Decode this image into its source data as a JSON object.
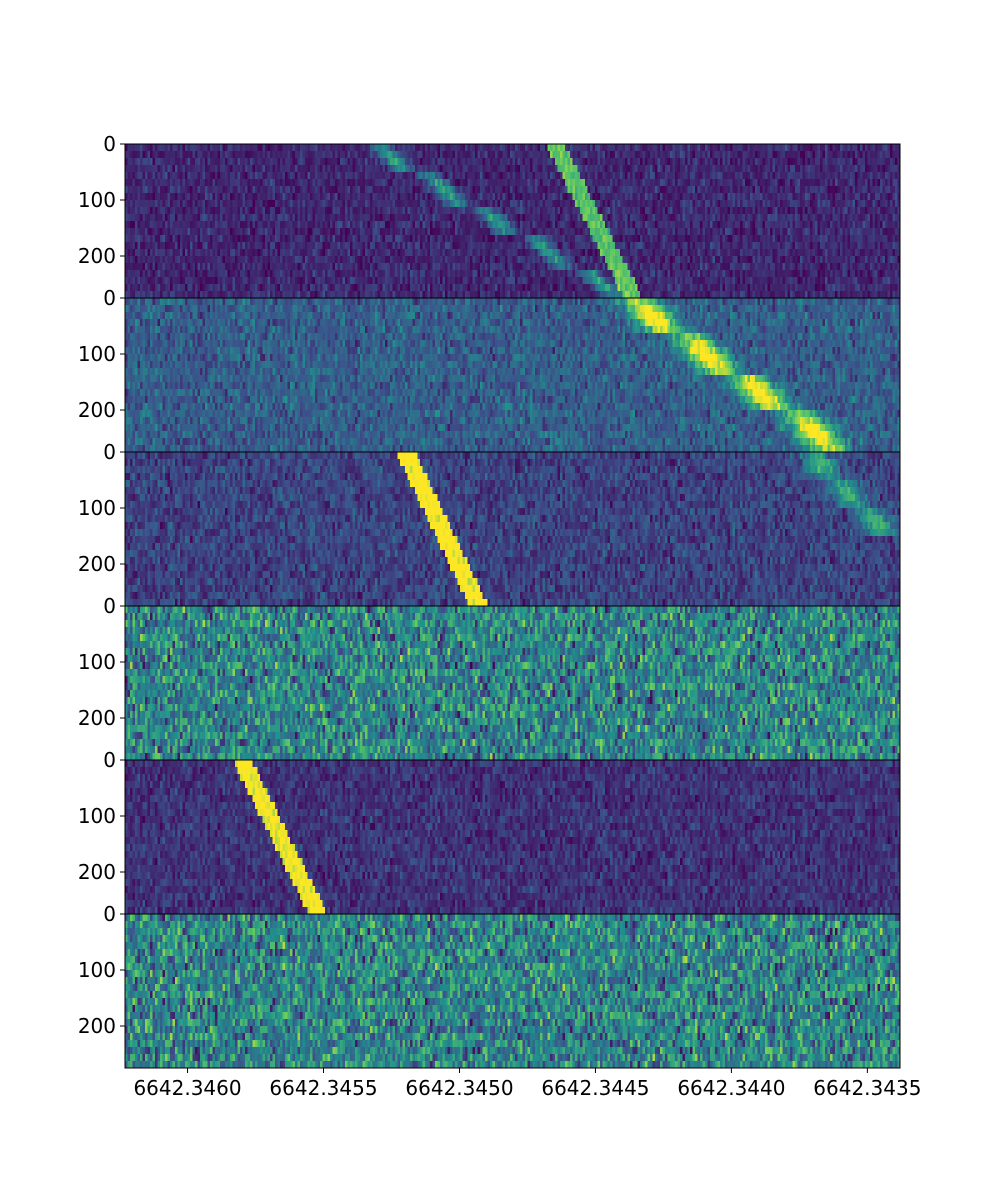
{
  "chart_data": {
    "type": "heatmap",
    "title": "",
    "xlabel": "",
    "ylabel": "",
    "x_axis": {
      "xlim": [
        6642.34623,
        6642.34338
      ],
      "inverted": true,
      "ticks": [
        6642.346,
        6642.3455,
        6642.345,
        6642.3445,
        6642.344,
        6642.3435
      ],
      "tick_labels": [
        "6642.3460",
        "6642.3455",
        "6642.3450",
        "6642.3445",
        "6642.3440",
        "6642.3435"
      ]
    },
    "colormap": "viridis",
    "panels": [
      {
        "ylim": [
          0,
          275
        ],
        "y_ticks": [
          0,
          100,
          200
        ],
        "y_tick_labels": [
          "0",
          "100",
          "200"
        ],
        "background_level": 0.12,
        "noise_level": 0.06,
        "tracks": [
          {
            "x_start": 6642.34436,
            "x_end": 6642.34465,
            "intensity": 0.62,
            "width": 3.5e-05
          },
          {
            "x_start": 6642.34435,
            "x_end": 6642.3453,
            "intensity": 0.45,
            "width": 4e-05,
            "style": "fuzzy-slow",
            "blocks": 5
          }
        ]
      },
      {
        "ylim": [
          0,
          275
        ],
        "y_ticks": [
          0,
          100,
          200
        ],
        "y_tick_labels": [
          "0",
          "100",
          "200"
        ],
        "background_level": 0.3,
        "noise_level": 0.08,
        "tracks": [
          {
            "x_start": 6642.34355,
            "x_end": 6642.34435,
            "intensity": 0.8,
            "width": 7e-05,
            "style": "fuzzy-slow",
            "blocks": 4
          }
        ]
      },
      {
        "ylim": [
          0,
          275
        ],
        "y_ticks": [
          0,
          100,
          200
        ],
        "y_tick_labels": [
          "0",
          "100",
          "200"
        ],
        "background_level": 0.2,
        "noise_level": 0.07,
        "tracks": [
          {
            "x_start": 6642.34493,
            "x_end": 6642.3452,
            "intensity": 0.88,
            "width": 3.5e-05
          },
          {
            "x_start": 6642.3434,
            "x_end": 6642.3437,
            "intensity": 0.45,
            "width": 6e-05,
            "style": "fuzzy-slow",
            "blocks": 3,
            "y_range": [
              0,
              150
            ]
          }
        ]
      },
      {
        "ylim": [
          0,
          275
        ],
        "y_ticks": [
          0,
          100,
          200
        ],
        "y_tick_labels": [
          "0",
          "100",
          "200"
        ],
        "background_level": 0.45,
        "noise_level": 0.16,
        "tracks": []
      },
      {
        "ylim": [
          0,
          275
        ],
        "y_ticks": [
          0,
          100,
          200
        ],
        "y_tick_labels": [
          "0",
          "100",
          "200"
        ],
        "background_level": 0.15,
        "noise_level": 0.06,
        "tracks": [
          {
            "x_start": 6642.34552,
            "x_end": 6642.3458,
            "intensity": 0.88,
            "width": 3.5e-05
          }
        ]
      },
      {
        "ylim": [
          0,
          275
        ],
        "y_ticks": [
          0,
          100,
          200
        ],
        "y_tick_labels": [
          "0",
          "100",
          "200"
        ],
        "background_level": 0.45,
        "noise_level": 0.16,
        "tracks": []
      }
    ],
    "grid": false,
    "legend": "none"
  }
}
